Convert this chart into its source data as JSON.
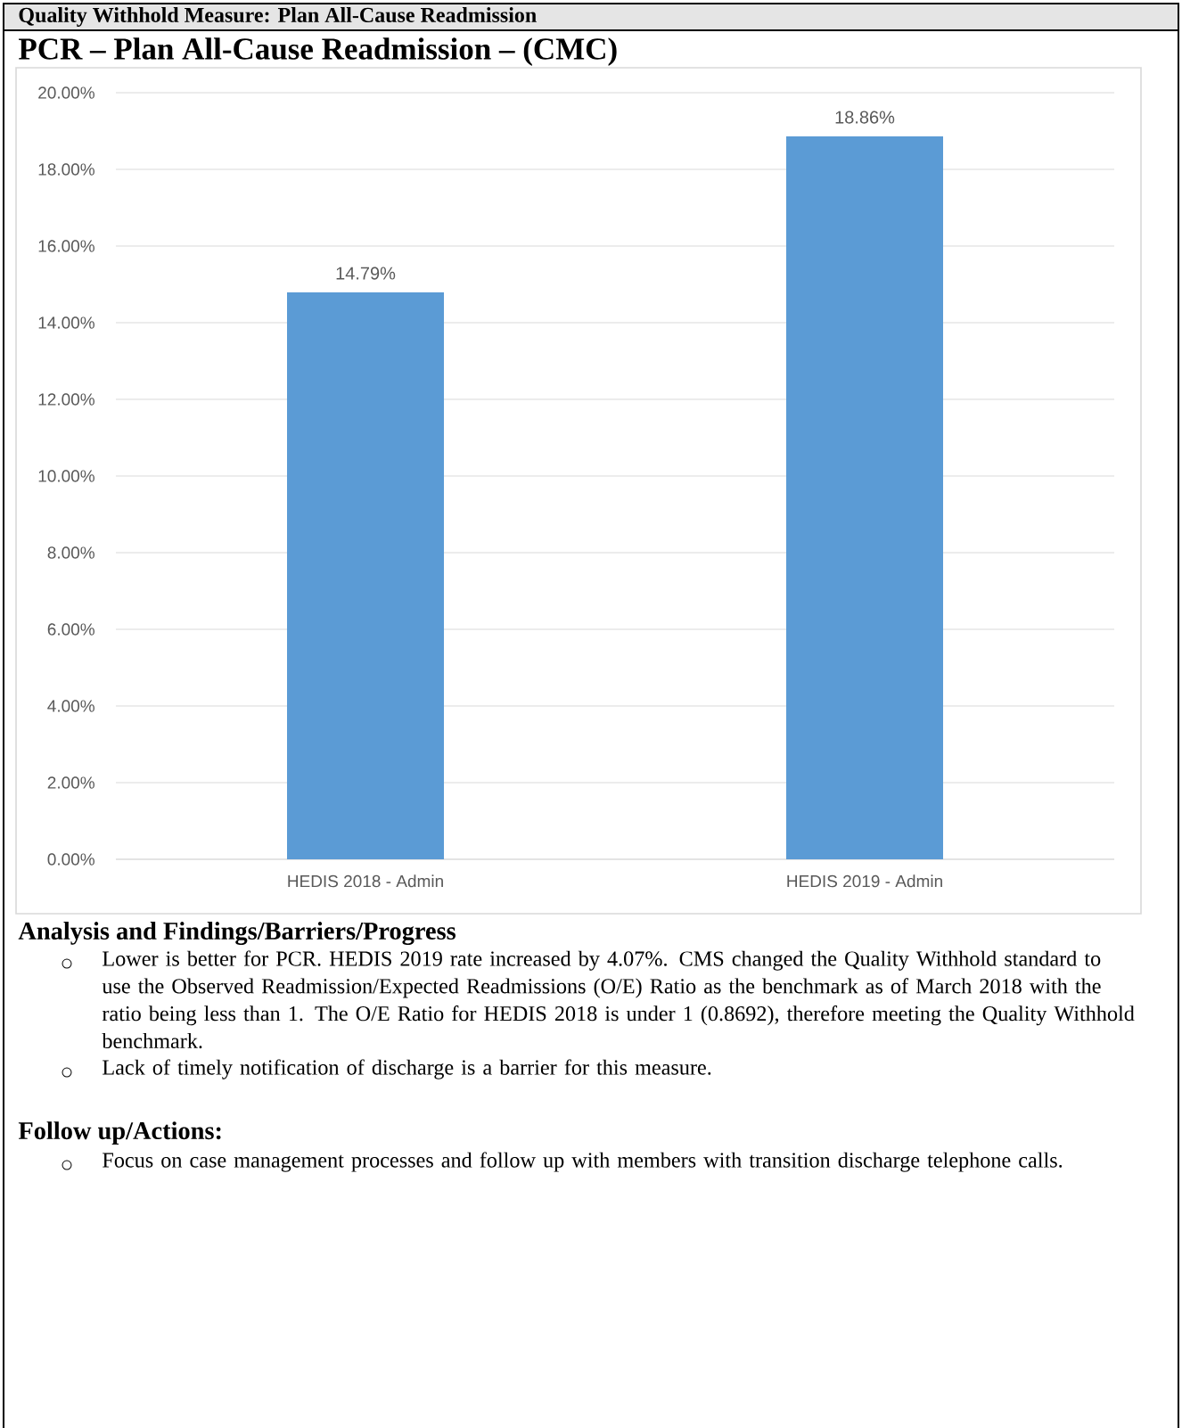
{
  "chart_data": {
    "type": "bar",
    "title": "PCR – Plan All-Cause Readmission – (CMC)",
    "categories": [
      "HEDIS 2018 - Admin",
      "HEDIS 2019 - Admin"
    ],
    "values": [
      14.79,
      18.86
    ],
    "color": "#5b9bd5",
    "value_labels": [
      "14.79%",
      "18.86%"
    ],
    "ylim": [
      0,
      20
    ],
    "yticks": [
      {
        "value": 0,
        "label": "0.00%"
      },
      {
        "value": 2,
        "label": "2.00%"
      },
      {
        "value": 4,
        "label": "4.00%"
      },
      {
        "value": 6,
        "label": "6.00%"
      },
      {
        "value": 8,
        "label": "8.00%"
      },
      {
        "value": 10,
        "label": "10.00%"
      },
      {
        "value": 12,
        "label": "12.00%"
      },
      {
        "value": 14,
        "label": "14.00%"
      },
      {
        "value": 16,
        "label": "16.00%"
      },
      {
        "value": 18,
        "label": "18.00%"
      },
      {
        "value": 20,
        "label": "20.00%"
      }
    ],
    "grid": "y",
    "annotations": [
      "Quality Withhold Measure: Plan All-Cause Readmission",
      "Analysis and Findings/Barriers/Progress",
      "Lower is better for PCR. HEDIS 2019 rate increased by 4.07%. CMS changed the Quality Withhold standard to use the Observed Readmission/Expected Readmissions (O/E) Ratio as the benchmark as of March 2018 with the ratio being less than 1. The O/E Ratio for HEDIS 2018 is under 1 (0.8692), therefore meeting the Quality Withhold benchmark.",
      "Lack of timely notification of discharge is a barrier for this measure.",
      "Follow up/Actions:",
      "Focus on case management processes and follow up with members with transition discharge telephone calls."
    ]
  }
}
